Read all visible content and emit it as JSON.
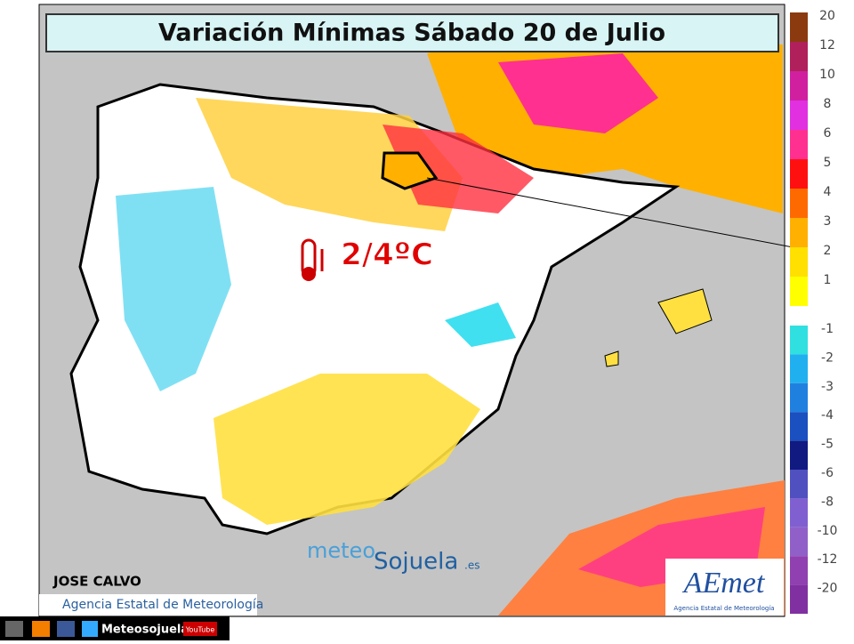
{
  "title": "Variación Mínimas Sábado 20 de Julio",
  "annotation": "2/4ºC",
  "author": "JOSE CALVO",
  "credit": "Agencia Estatal de Meteorología",
  "watermark": {
    "part1": "meteo",
    "part2": "Sojuela",
    "part3": ".es"
  },
  "logo": {
    "name": "AEmet",
    "subtitle": "Agencia Estatal de Meteorología"
  },
  "footer": {
    "handle": "Meteosojuela",
    "youtube": "YouTube"
  },
  "legend": {
    "positive": [
      {
        "label": 20,
        "color": "#8b3a0f"
      },
      {
        "label": 12,
        "color": "#b0205a"
      },
      {
        "label": 10,
        "color": "#d020a0"
      },
      {
        "label": 8,
        "color": "#e030e0"
      },
      {
        "label": 6,
        "color": "#ff3090"
      },
      {
        "label": 5,
        "color": "#ff1010"
      },
      {
        "label": 4,
        "color": "#ff6a00"
      },
      {
        "label": 3,
        "color": "#ffb000"
      },
      {
        "label": 2,
        "color": "#ffe000"
      },
      {
        "label": 1,
        "color": "#ffff00"
      }
    ],
    "negative": [
      {
        "label": -1,
        "color": "#30e0e0"
      },
      {
        "label": -2,
        "color": "#20b0f0"
      },
      {
        "label": -3,
        "color": "#2080e0"
      },
      {
        "label": -4,
        "color": "#1a50c0"
      },
      {
        "label": -5,
        "color": "#101a80"
      },
      {
        "label": -6,
        "color": "#5050c0"
      },
      {
        "label": -8,
        "color": "#8060d0"
      },
      {
        "label": -10,
        "color": "#9060c8"
      },
      {
        "label": -12,
        "color": "#9040b0"
      },
      {
        "label": -20,
        "color": "#8030a0"
      }
    ]
  }
}
